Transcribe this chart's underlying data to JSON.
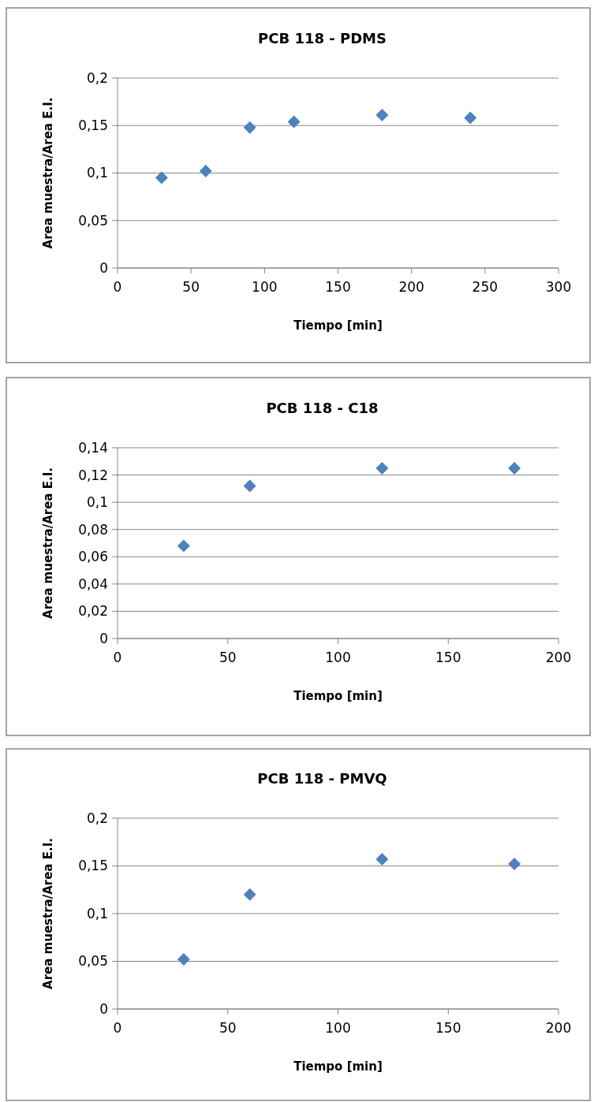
{
  "chart_data": [
    {
      "type": "scatter",
      "title": "PCB 118 - PDMS",
      "xlabel": "Tiempo [min]",
      "ylabel": "Area muestra/Area E.I.",
      "x": [
        30,
        60,
        90,
        120,
        180,
        240
      ],
      "series": [
        {
          "color": "#4f81bd",
          "values": [
            0.095,
            0.102,
            0.148,
            0.154,
            0.161,
            0.158
          ]
        }
      ],
      "xlim": [
        0,
        300
      ],
      "xticks": [
        0,
        50,
        100,
        150,
        200,
        250,
        300
      ],
      "ylim": [
        0,
        0.2
      ],
      "yticks": [
        {
          "value": 0,
          "label": "0"
        },
        {
          "value": 0.05,
          "label": "0,05"
        },
        {
          "value": 0.1,
          "label": "0,1"
        },
        {
          "value": 0.15,
          "label": "0,15"
        },
        {
          "value": 0.2,
          "label": "0,2"
        }
      ],
      "grid": "y",
      "marker": "diamond"
    },
    {
      "type": "scatter",
      "title": "PCB 118 - C18",
      "xlabel": "Tiempo [min]",
      "ylabel": "Area muestra/Area E.I.",
      "x": [
        30,
        60,
        120,
        180
      ],
      "series": [
        {
          "color": "#4f81bd",
          "values": [
            0.068,
            0.112,
            0.125,
            0.125
          ]
        }
      ],
      "xlim": [
        0,
        200
      ],
      "xticks": [
        0,
        50,
        100,
        150,
        200
      ],
      "ylim": [
        0,
        0.14
      ],
      "yticks": [
        {
          "value": 0,
          "label": "0"
        },
        {
          "value": 0.02,
          "label": "0,02"
        },
        {
          "value": 0.04,
          "label": "0,04"
        },
        {
          "value": 0.06,
          "label": "0,06"
        },
        {
          "value": 0.08,
          "label": "0,08"
        },
        {
          "value": 0.1,
          "label": "0,1"
        },
        {
          "value": 0.12,
          "label": "0,12"
        },
        {
          "value": 0.14,
          "label": "0,14"
        }
      ],
      "grid": "y",
      "marker": "diamond"
    },
    {
      "type": "scatter",
      "title": "PCB 118 - PMVQ",
      "xlabel": "Tiempo [min]",
      "ylabel": "Area muestra/Area E.I.",
      "x": [
        30,
        60,
        120,
        180
      ],
      "series": [
        {
          "color": "#4f81bd",
          "values": [
            0.052,
            0.12,
            0.157,
            0.152
          ]
        }
      ],
      "xlim": [
        0,
        200
      ],
      "xticks": [
        0,
        50,
        100,
        150,
        200
      ],
      "ylim": [
        0,
        0.2
      ],
      "yticks": [
        {
          "value": 0,
          "label": "0"
        },
        {
          "value": 0.05,
          "label": "0,05"
        },
        {
          "value": 0.1,
          "label": "0,1"
        },
        {
          "value": 0.15,
          "label": "0,15"
        },
        {
          "value": 0.2,
          "label": "0,2"
        }
      ],
      "grid": "y",
      "marker": "diamond"
    }
  ]
}
